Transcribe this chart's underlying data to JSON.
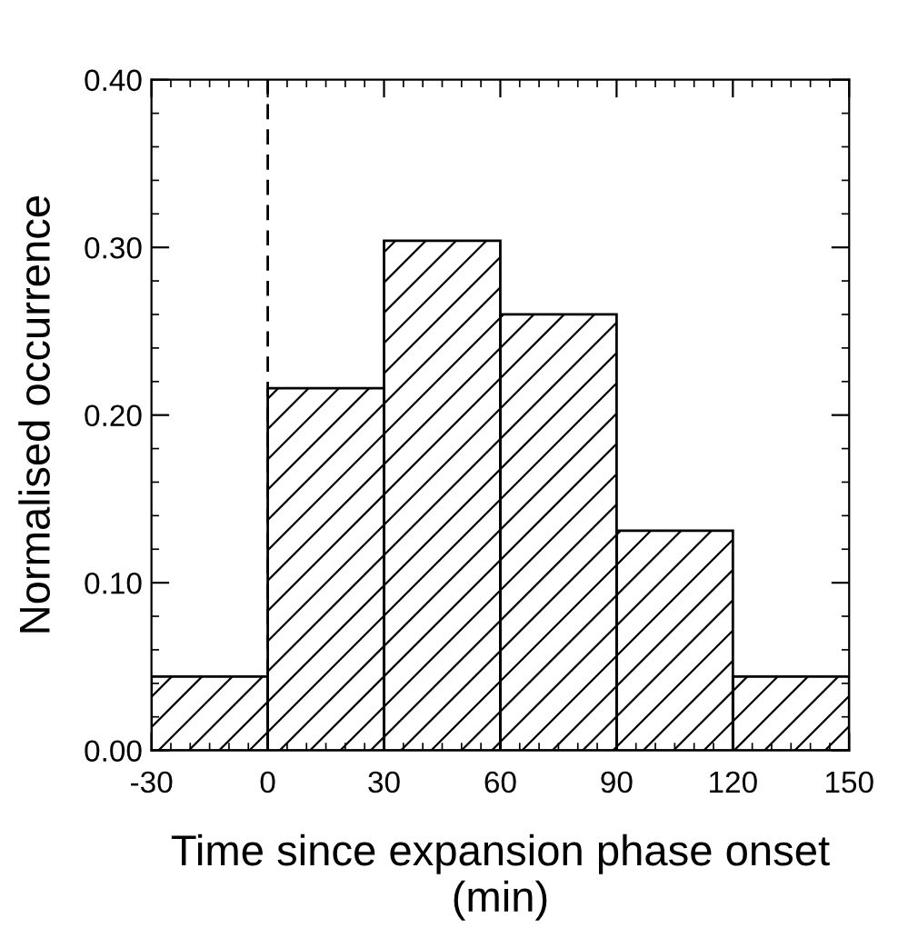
{
  "chart_data": {
    "type": "histogram",
    "xlabel": "Time since expansion phase onset\n(min)",
    "ylabel": "Normalised occurrence",
    "bins": [
      -30,
      0,
      30,
      60,
      90,
      120,
      150
    ],
    "values": [
      0.044,
      0.216,
      0.304,
      0.26,
      0.131,
      0.044
    ],
    "color": "#000000",
    "xlim": [
      -30,
      150
    ],
    "xticks": [
      -30,
      0,
      30,
      60,
      90,
      120,
      150
    ],
    "ylim": [
      0,
      0.4
    ],
    "yticks": [
      {
        "value": 0,
        "label": "0.00"
      },
      {
        "value": 0.1,
        "label": "0.10"
      },
      {
        "value": 0.2,
        "label": "0.20"
      },
      {
        "value": 0.3,
        "label": "0.30"
      },
      {
        "value": 0.4,
        "label": "0.40"
      }
    ],
    "ref_lines": [
      {
        "axis": "x",
        "value": 0,
        "line_style": "dashed",
        "color": "#000000"
      }
    ],
    "grid": false,
    "legend": false
  }
}
